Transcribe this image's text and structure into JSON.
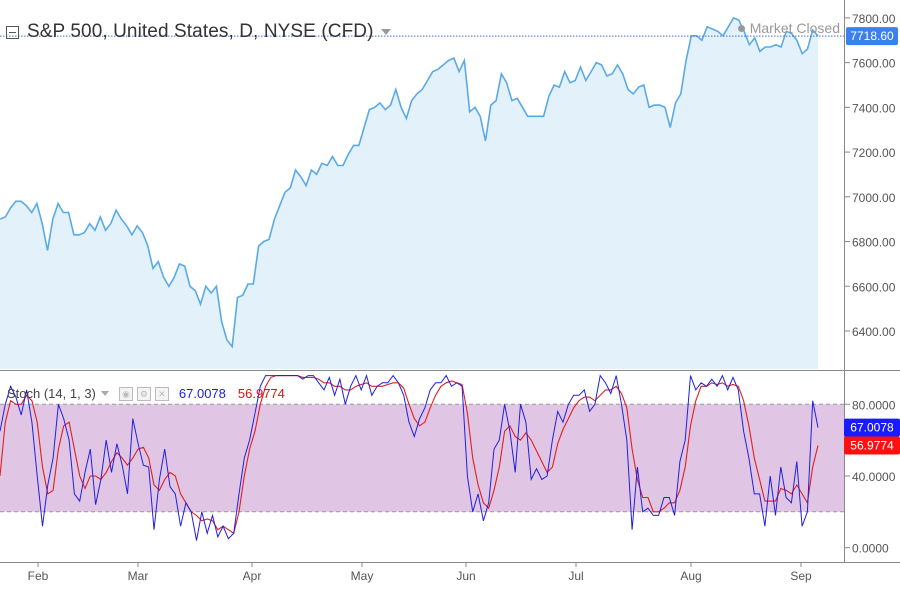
{
  "header": {
    "title": "S&P 500, United States, D, NYSE (CFD)",
    "status": "Market Closed"
  },
  "colors": {
    "price_line": "#5aaae6",
    "price_fill": "#e3f1fb",
    "last_price_bg": "#3b80ee",
    "stoch_k": "#2020e0",
    "stoch_d": "#e02020",
    "stoch_k_badge": "#1a1aff",
    "stoch_d_badge": "#ff1010",
    "stoch_band": "#e0c6e4"
  },
  "stoch_header": {
    "label": "Stoch (14, 1, 3)",
    "k_value": "67.0078",
    "d_value": "56.9774"
  },
  "chart_data": [
    {
      "type": "area",
      "title": "S&P 500, United States, D, NYSE (CFD)",
      "ylim": [
        6230,
        7880
      ],
      "y_ticks": [
        "6400.00",
        "6600.00",
        "6800.00",
        "7000.00",
        "7200.00",
        "7400.00",
        "7600.00",
        "7800.00"
      ],
      "last_value_label": "7718.60",
      "last_value": 7718.6,
      "x_labels": [
        "Feb",
        "Mar",
        "Apr",
        "May",
        "Jun",
        "Jul",
        "Aug",
        "Sep"
      ],
      "values": [
        6900,
        6910,
        6950,
        6980,
        6980,
        6960,
        6930,
        6970,
        6880,
        6760,
        6900,
        6970,
        6930,
        6930,
        6830,
        6830,
        6840,
        6880,
        6850,
        6910,
        6850,
        6880,
        6940,
        6900,
        6870,
        6830,
        6870,
        6840,
        6780,
        6680,
        6710,
        6640,
        6600,
        6640,
        6700,
        6690,
        6600,
        6580,
        6520,
        6600,
        6570,
        6600,
        6440,
        6360,
        6330,
        6550,
        6560,
        6610,
        6610,
        6780,
        6800,
        6810,
        6900,
        6960,
        7020,
        7040,
        7120,
        7090,
        7050,
        7120,
        7100,
        7150,
        7140,
        7180,
        7140,
        7140,
        7190,
        7230,
        7230,
        7310,
        7390,
        7400,
        7420,
        7390,
        7410,
        7480,
        7400,
        7350,
        7430,
        7460,
        7480,
        7520,
        7560,
        7570,
        7590,
        7610,
        7620,
        7560,
        7610,
        7380,
        7400,
        7360,
        7250,
        7410,
        7430,
        7550,
        7510,
        7430,
        7440,
        7400,
        7360,
        7360,
        7360,
        7360,
        7450,
        7500,
        7490,
        7560,
        7510,
        7520,
        7580,
        7520,
        7560,
        7600,
        7590,
        7540,
        7550,
        7590,
        7550,
        7480,
        7460,
        7490,
        7500,
        7400,
        7410,
        7410,
        7400,
        7310,
        7420,
        7460,
        7610,
        7720,
        7720,
        7700,
        7760,
        7750,
        7740,
        7720,
        7760,
        7800,
        7790,
        7740,
        7680,
        7710,
        7650,
        7670,
        7670,
        7680,
        7670,
        7740,
        7730,
        7700,
        7640,
        7660,
        7745,
        7720
      ]
    },
    {
      "type": "line",
      "title": "Stoch (14, 1, 3)",
      "ylim": [
        -8,
        98
      ],
      "y_ticks": [
        "0.0000",
        "40.0000",
        "80.0000"
      ],
      "band": [
        20,
        80
      ],
      "x_labels": [
        "Feb",
        "Mar",
        "Apr",
        "May",
        "Jun",
        "Jul",
        "Aug",
        "Sep"
      ],
      "series": [
        {
          "name": "%K",
          "label": "67.0078",
          "values": [
            65,
            80,
            90,
            84,
            74,
            88,
            70,
            40,
            12,
            35,
            50,
            80,
            72,
            60,
            30,
            26,
            42,
            55,
            24,
            38,
            60,
            42,
            58,
            46,
            30,
            72,
            58,
            46,
            45,
            10,
            38,
            55,
            34,
            30,
            12,
            25,
            20,
            4,
            20,
            8,
            18,
            6,
            12,
            5,
            8,
            30,
            50,
            60,
            75,
            90,
            96,
            96,
            96,
            96,
            96,
            96,
            96,
            94,
            96,
            96,
            92,
            88,
            95,
            85,
            94,
            80,
            90,
            96,
            88,
            96,
            85,
            90,
            92,
            92,
            96,
            92,
            85,
            70,
            62,
            72,
            78,
            88,
            92,
            92,
            96,
            90,
            92,
            90,
            40,
            20,
            30,
            15,
            25,
            55,
            60,
            80,
            65,
            42,
            80,
            70,
            38,
            44,
            38,
            40,
            60,
            76,
            70,
            80,
            85,
            85,
            88,
            76,
            80,
            96,
            92,
            86,
            96,
            80,
            60,
            10,
            45,
            20,
            22,
            18,
            18,
            28,
            28,
            18,
            48,
            60,
            96,
            88,
            92,
            90,
            94,
            90,
            96,
            88,
            95,
            88,
            65,
            50,
            30,
            30,
            12,
            40,
            18,
            45,
            28,
            25,
            48,
            12,
            20,
            82,
            67
          ]
        },
        {
          "name": "%D",
          "label": "56.9774",
          "values": [
            40,
            70,
            82,
            80,
            80,
            85,
            82,
            70,
            45,
            30,
            32,
            55,
            68,
            70,
            55,
            40,
            33,
            40,
            40,
            38,
            42,
            48,
            53,
            50,
            46,
            50,
            55,
            56,
            50,
            35,
            32,
            38,
            42,
            40,
            30,
            25,
            20,
            18,
            15,
            16,
            15,
            10,
            12,
            10,
            8,
            20,
            40,
            55,
            65,
            80,
            90,
            95,
            96,
            96,
            96,
            96,
            96,
            95,
            95,
            95,
            94,
            92,
            92,
            90,
            90,
            88,
            88,
            90,
            91,
            92,
            90,
            90,
            90,
            91,
            92,
            92,
            89,
            80,
            72,
            68,
            70,
            78,
            85,
            90,
            92,
            93,
            92,
            91,
            75,
            50,
            35,
            25,
            22,
            32,
            45,
            65,
            68,
            62,
            60,
            64,
            60,
            54,
            48,
            42,
            45,
            58,
            66,
            72,
            78,
            82,
            84,
            84,
            82,
            85,
            88,
            88,
            90,
            86,
            78,
            55,
            38,
            28,
            28,
            20,
            20,
            22,
            25,
            25,
            32,
            45,
            68,
            82,
            90,
            90,
            92,
            91,
            92,
            90,
            91,
            90,
            82,
            68,
            50,
            38,
            26,
            26,
            26,
            33,
            32,
            30,
            35,
            30,
            25,
            45,
            57
          ]
        }
      ]
    }
  ]
}
